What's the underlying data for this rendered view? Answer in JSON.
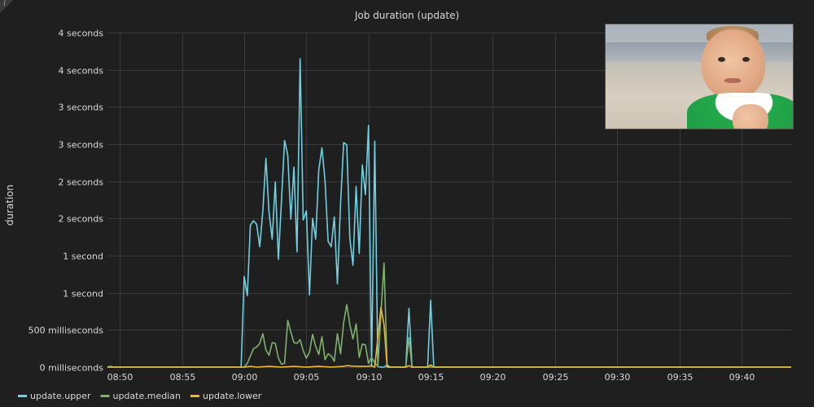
{
  "panel_info_icon": "info-icon",
  "photo_icon": "photo",
  "chart_data": {
    "type": "line",
    "title": "Job duration (update)",
    "ylabel": "duration",
    "xlabel": "",
    "ylim": [
      0,
      4.5
    ],
    "xlim": [
      "08:49",
      "09:44"
    ],
    "y_ticks": [
      {
        "value": 0,
        "label": "0 milliseconds"
      },
      {
        "value": 0.5,
        "label": "500 milliseconds"
      },
      {
        "value": 1.0,
        "label": "1 second"
      },
      {
        "value": 1.5,
        "label": "1 second"
      },
      {
        "value": 2.0,
        "label": "2 seconds"
      },
      {
        "value": 2.5,
        "label": "2 seconds"
      },
      {
        "value": 3.0,
        "label": "3 seconds"
      },
      {
        "value": 3.5,
        "label": "3 seconds"
      },
      {
        "value": 4.0,
        "label": "4 seconds"
      },
      {
        "value": 4.5,
        "label": "4 seconds"
      }
    ],
    "x_ticks": [
      "08:50",
      "08:55",
      "09:00",
      "09:05",
      "09:10",
      "09:15",
      "09:20",
      "09:25",
      "09:30",
      "09:35",
      "09:40"
    ],
    "grid": true,
    "legend_position": "bottom-left",
    "series": [
      {
        "name": "update.upper",
        "color": "#6ed0e0",
        "points": [
          [
            "08:49:00",
            0
          ],
          [
            "08:49:15",
            0.01
          ],
          [
            "08:49:30",
            0
          ],
          [
            "08:59:45",
            0
          ],
          [
            "09:00:00",
            1.22
          ],
          [
            "09:00:15",
            0.96
          ],
          [
            "09:00:30",
            1.91
          ],
          [
            "09:00:45",
            1.97
          ],
          [
            "09:01:00",
            1.92
          ],
          [
            "09:01:15",
            1.62
          ],
          [
            "09:01:30",
            2.1
          ],
          [
            "09:01:45",
            2.81
          ],
          [
            "09:02:00",
            2.08
          ],
          [
            "09:02:15",
            1.72
          ],
          [
            "09:02:30",
            2.49
          ],
          [
            "09:02:45",
            1.45
          ],
          [
            "09:03:00",
            2.24
          ],
          [
            "09:03:15",
            3.05
          ],
          [
            "09:03:30",
            2.85
          ],
          [
            "09:03:45",
            1.99
          ],
          [
            "09:04:00",
            2.69
          ],
          [
            "09:04:15",
            1.55
          ],
          [
            "09:04:30",
            4.15
          ],
          [
            "09:04:45",
            1.98
          ],
          [
            "09:05:00",
            2.1
          ],
          [
            "09:05:15",
            0.97
          ],
          [
            "09:05:30",
            2.0
          ],
          [
            "09:05:45",
            1.72
          ],
          [
            "09:06:00",
            2.65
          ],
          [
            "09:06:15",
            2.95
          ],
          [
            "09:06:30",
            2.51
          ],
          [
            "09:06:45",
            1.69
          ],
          [
            "09:07:00",
            1.62
          ],
          [
            "09:07:15",
            2.02
          ],
          [
            "09:07:30",
            1.12
          ],
          [
            "09:07:45",
            2.2
          ],
          [
            "09:08:00",
            3.02
          ],
          [
            "09:08:15",
            2.99
          ],
          [
            "09:08:30",
            1.73
          ],
          [
            "09:08:45",
            1.37
          ],
          [
            "09:09:00",
            2.43
          ],
          [
            "09:09:15",
            1.53
          ],
          [
            "09:09:30",
            2.72
          ],
          [
            "09:09:45",
            2.32
          ],
          [
            "09:10:00",
            3.25
          ],
          [
            "09:10:15",
            0.01
          ],
          [
            "09:10:30",
            3.04
          ],
          [
            "09:10:45",
            0.01
          ],
          [
            "09:11:00",
            0
          ],
          [
            "09:11:15",
            0
          ],
          [
            "09:11:30",
            0.03
          ],
          [
            "09:11:45",
            0
          ],
          [
            "09:12:00",
            0
          ],
          [
            "09:13:00",
            0
          ],
          [
            "09:13:15",
            0.79
          ],
          [
            "09:13:30",
            0
          ],
          [
            "09:14:45",
            0
          ],
          [
            "09:15:00",
            0.9
          ],
          [
            "09:15:15",
            0
          ],
          [
            "09:44:00",
            0
          ]
        ]
      },
      {
        "name": "update.median",
        "color": "#7eb26d",
        "points": [
          [
            "08:49:00",
            0
          ],
          [
            "09:00:00",
            0
          ],
          [
            "09:00:15",
            0.05
          ],
          [
            "09:00:30",
            0.15
          ],
          [
            "09:00:45",
            0.25
          ],
          [
            "09:01:00",
            0.27
          ],
          [
            "09:01:15",
            0.32
          ],
          [
            "09:01:30",
            0.45
          ],
          [
            "09:01:45",
            0.23
          ],
          [
            "09:02:00",
            0.16
          ],
          [
            "09:02:15",
            0.33
          ],
          [
            "09:02:30",
            0.32
          ],
          [
            "09:02:45",
            0.12
          ],
          [
            "09:03:00",
            0.04
          ],
          [
            "09:03:15",
            0.05
          ],
          [
            "09:03:30",
            0.63
          ],
          [
            "09:03:45",
            0.47
          ],
          [
            "09:04:00",
            0.33
          ],
          [
            "09:04:15",
            0.32
          ],
          [
            "09:04:30",
            0.37
          ],
          [
            "09:04:45",
            0.22
          ],
          [
            "09:05:00",
            0.12
          ],
          [
            "09:05:15",
            0.2
          ],
          [
            "09:05:30",
            0.44
          ],
          [
            "09:05:45",
            0.28
          ],
          [
            "09:06:00",
            0.17
          ],
          [
            "09:06:15",
            0.41
          ],
          [
            "09:06:30",
            0.1
          ],
          [
            "09:06:45",
            0.18
          ],
          [
            "09:07:00",
            0.15
          ],
          [
            "09:07:15",
            0.08
          ],
          [
            "09:07:30",
            0.45
          ],
          [
            "09:07:45",
            0.18
          ],
          [
            "09:08:00",
            0.6
          ],
          [
            "09:08:15",
            0.84
          ],
          [
            "09:08:30",
            0.57
          ],
          [
            "09:08:45",
            0.38
          ],
          [
            "09:09:00",
            0.58
          ],
          [
            "09:09:15",
            0.13
          ],
          [
            "09:09:30",
            0.31
          ],
          [
            "09:09:45",
            0.3
          ],
          [
            "09:10:00",
            0.05
          ],
          [
            "09:10:15",
            0.13
          ],
          [
            "09:10:30",
            0.06
          ],
          [
            "09:10:45",
            0.01
          ],
          [
            "09:11:00",
            0.72
          ],
          [
            "09:11:15",
            1.4
          ],
          [
            "09:11:30",
            0
          ],
          [
            "09:13:00",
            0
          ],
          [
            "09:13:15",
            0.4
          ],
          [
            "09:13:30",
            0
          ],
          [
            "09:44:00",
            0
          ]
        ]
      },
      {
        "name": "update.lower",
        "color": "#eab839",
        "points": [
          [
            "08:49:00",
            0
          ],
          [
            "09:00:00",
            0
          ],
          [
            "09:00:30",
            0.01
          ],
          [
            "09:01:00",
            0
          ],
          [
            "09:02:00",
            0.01
          ],
          [
            "09:03:00",
            0
          ],
          [
            "09:04:00",
            0.01
          ],
          [
            "09:05:00",
            0
          ],
          [
            "09:06:00",
            0.01
          ],
          [
            "09:07:00",
            0
          ],
          [
            "09:08:00",
            0.01
          ],
          [
            "09:08:15",
            0.02
          ],
          [
            "09:09:00",
            0.01
          ],
          [
            "09:10:00",
            0.01
          ],
          [
            "09:10:15",
            0.02
          ],
          [
            "09:10:30",
            0
          ],
          [
            "09:11:00",
            0.8
          ],
          [
            "09:11:15",
            0.57
          ],
          [
            "09:11:30",
            0
          ],
          [
            "09:13:00",
            0
          ],
          [
            "09:13:15",
            0.02
          ],
          [
            "09:13:30",
            0
          ],
          [
            "09:14:45",
            0
          ],
          [
            "09:15:00",
            0.03
          ],
          [
            "09:15:15",
            0
          ],
          [
            "09:44:00",
            0
          ]
        ]
      }
    ]
  }
}
